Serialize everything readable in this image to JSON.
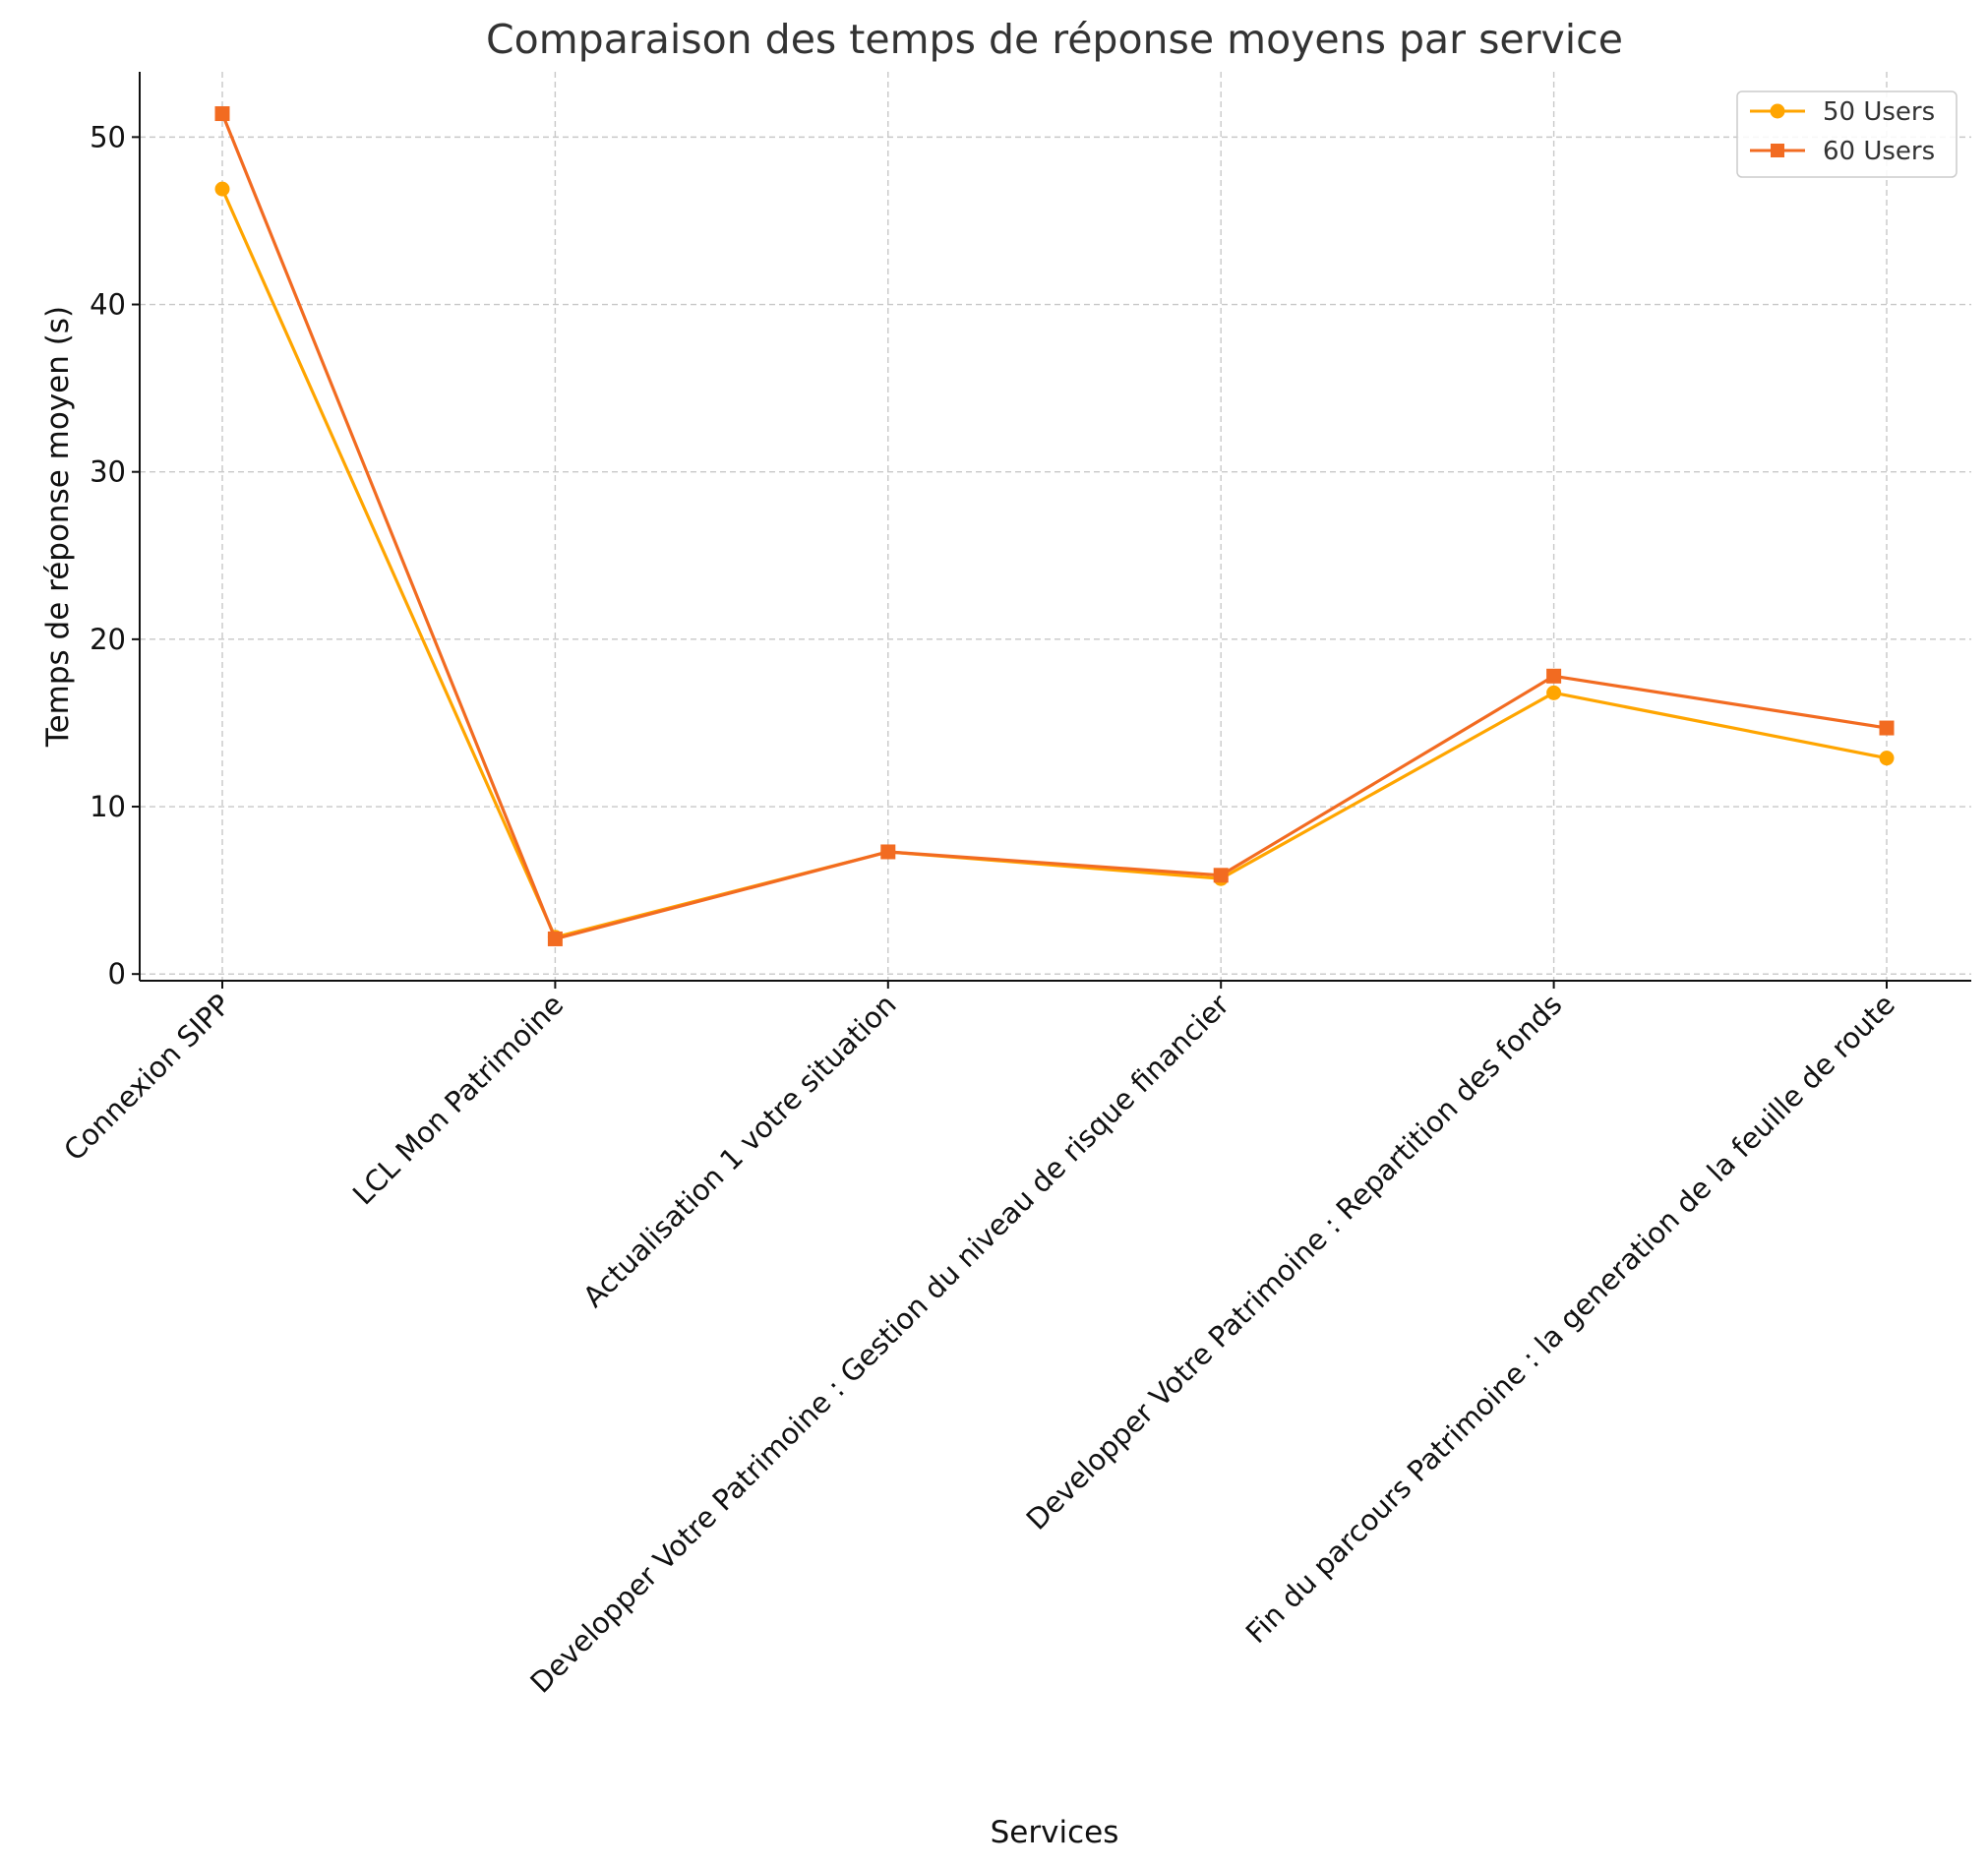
{
  "chart_data": {
    "type": "line",
    "title": "Comparaison des temps de réponse moyens par service",
    "xlabel": "Services",
    "ylabel": "Temps de réponse moyen (s)",
    "categories": [
      "Connexion SIPP",
      "LCL Mon Patrimoine",
      "Actualisation 1 votre situation",
      "Developper Votre Patrimoine : Gestion du niveau de risque financier",
      "Developper Votre Patrimoine : Repartition des fonds",
      "Fin du parcours Patrimoine : la generation de la feuille de route"
    ],
    "ylim": [
      -0.4,
      53.9
    ],
    "yticks": [
      0,
      10,
      20,
      30,
      40,
      50
    ],
    "grid": true,
    "legend_position": "top-right",
    "series": [
      {
        "name": "50 Users",
        "color": "#FFA500",
        "marker": "circle",
        "values": [
          46.9,
          2.2,
          7.3,
          5.7,
          16.8,
          12.9
        ]
      },
      {
        "name": "60 Users",
        "color": "#F26B21",
        "marker": "square",
        "values": [
          51.4,
          2.1,
          7.3,
          5.9,
          17.8,
          14.7
        ]
      }
    ]
  }
}
